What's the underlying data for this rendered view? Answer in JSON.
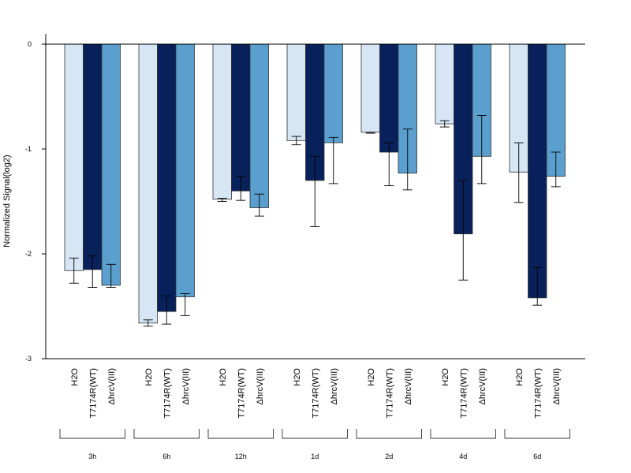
{
  "chart_data": {
    "type": "bar",
    "ylabel": "Normalized Signal(log2)",
    "ylim": [
      -3,
      0.1
    ],
    "yticks": [
      0,
      -1,
      -2,
      -3
    ],
    "groups": [
      "3h",
      "6h",
      "12h",
      "1d",
      "2d",
      "4d",
      "6d"
    ],
    "bar_labels": [
      "H2O",
      "T7174R(WT)",
      "ΔhrcV(III)"
    ],
    "series": [
      {
        "name": "H2O",
        "color": "#d6e6f4",
        "values": [
          -2.16,
          -2.66,
          -1.48,
          -0.92,
          -0.84,
          -0.76,
          -1.22
        ],
        "err_low": [
          -2.28,
          -2.69,
          -1.5,
          -0.96,
          -0.85,
          -0.79,
          -1.51
        ],
        "err_high": [
          -2.04,
          -2.63,
          -1.47,
          -0.88,
          -0.84,
          -0.73,
          -0.94
        ]
      },
      {
        "name": "T7174R(WT)",
        "color": "#08215a",
        "values": [
          -2.15,
          -2.55,
          -1.4,
          -1.3,
          -1.03,
          -1.81,
          -2.42
        ],
        "err_low": [
          -2.32,
          -2.67,
          -1.49,
          -1.74,
          -1.35,
          -2.25,
          -2.49
        ],
        "err_high": [
          -2.02,
          -2.4,
          -1.26,
          -1.07,
          -0.94,
          -1.3,
          -2.13
        ]
      },
      {
        "name": "ΔhrcV(III)",
        "color": "#5a9fcd",
        "values": [
          -2.3,
          -2.41,
          -1.56,
          -0.94,
          -1.23,
          -1.07,
          -1.26
        ],
        "err_low": [
          -2.32,
          -2.59,
          -1.64,
          -1.33,
          -1.39,
          -1.33,
          -1.36
        ],
        "err_high": [
          -2.1,
          -2.38,
          -1.43,
          -0.89,
          -0.81,
          -0.68,
          -1.03
        ]
      }
    ]
  }
}
